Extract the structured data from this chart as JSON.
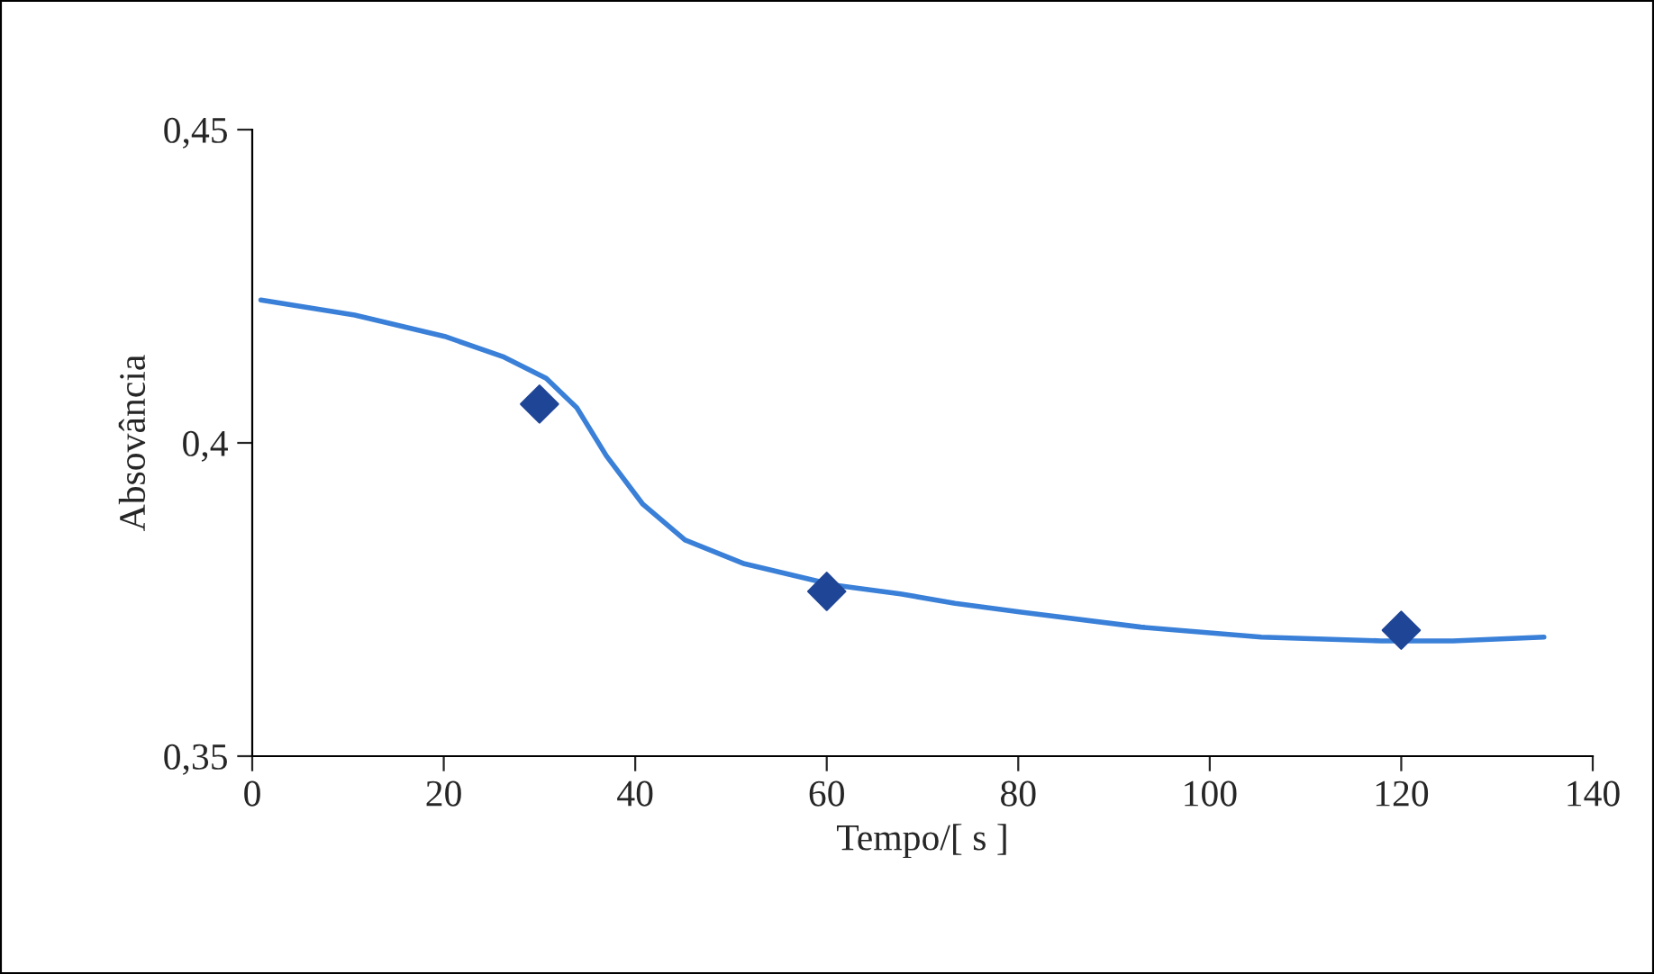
{
  "chart_data": {
    "type": "line",
    "xlabel": "Tempo/[ s ]",
    "ylabel": "Absovância",
    "xlim": [
      0,
      140
    ],
    "xticks": [
      0,
      20,
      40,
      60,
      80,
      100,
      120,
      140
    ],
    "ylim": [
      0.35,
      0.45
    ],
    "yticks": [
      {
        "value": 0.35,
        "label": "0,35"
      },
      {
        "value": 0.4,
        "label": "0,4"
      },
      {
        "value": 0.45,
        "label": "0,45"
      }
    ],
    "grid": false,
    "legend": false,
    "series": [
      {
        "color": "#3a80d8",
        "marker": "none",
        "line_style": "solid",
        "x": [
          0.9,
          10.7,
          20.1,
          26.3,
          30.7,
          33.9,
          37.0,
          40.8,
          45.2,
          51.4,
          60.8,
          67.7,
          73.4,
          80.3,
          92.8,
          105.4,
          117.9,
          125.4,
          134.9
        ],
        "values": [
          0.4228,
          0.4204,
          0.417,
          0.4137,
          0.4103,
          0.4056,
          0.3979,
          0.3902,
          0.3845,
          0.3807,
          0.3773,
          0.3759,
          0.3744,
          0.373,
          0.3706,
          0.369,
          0.3684,
          0.3684,
          0.369
        ]
      },
      {
        "type": "scatter",
        "color": "#1f4596",
        "marker": "diamond",
        "x": [
          30,
          60,
          120
        ],
        "values": [
          0.4062,
          0.3763,
          0.3701
        ]
      }
    ]
  }
}
